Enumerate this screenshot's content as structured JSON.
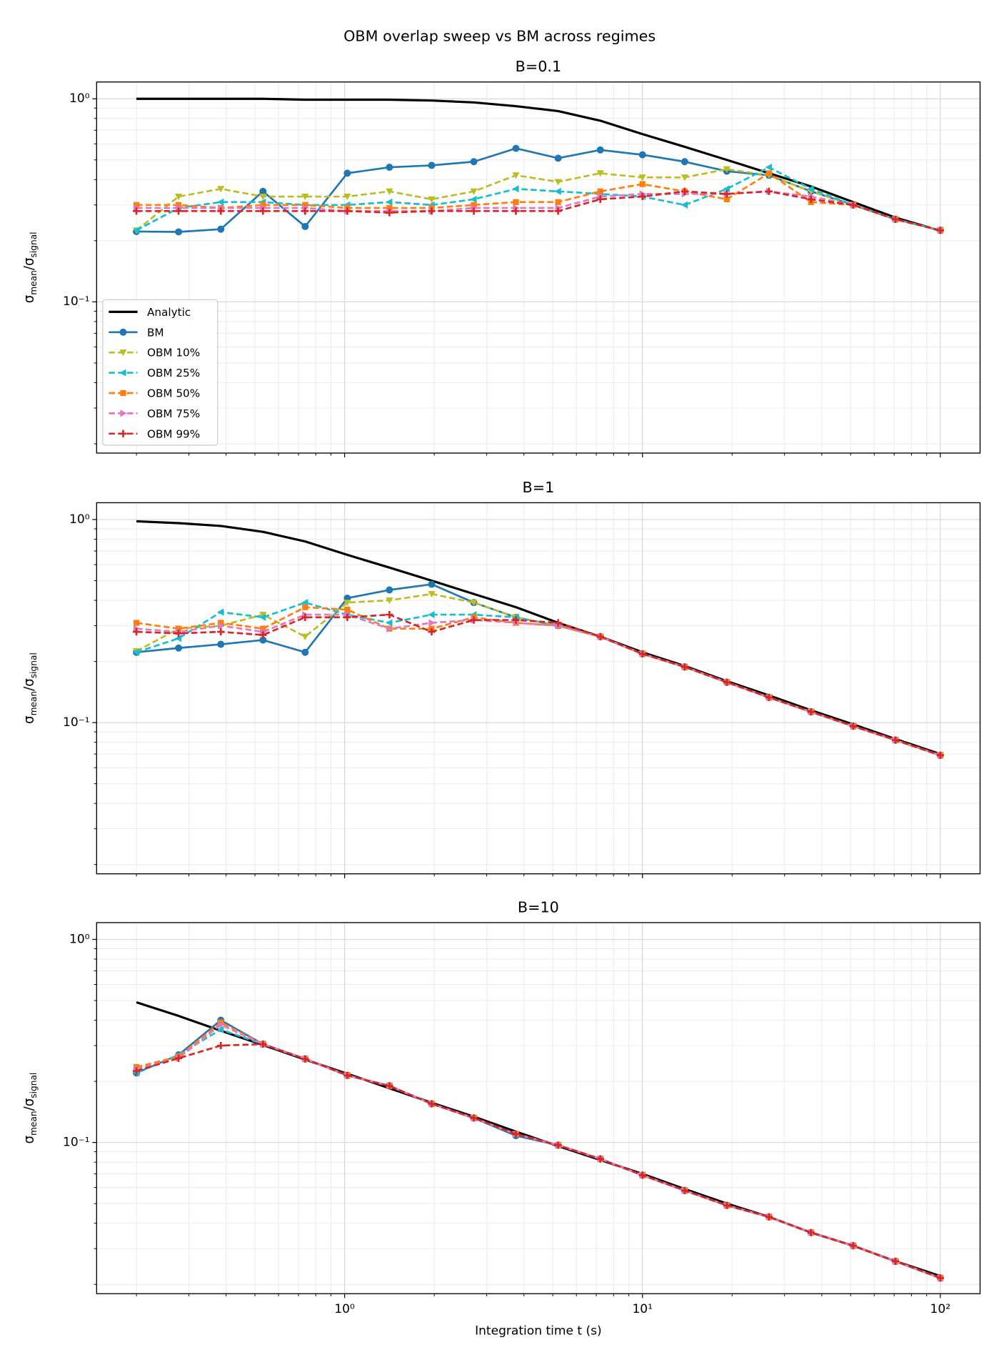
{
  "title": "OBM overlap sweep vs BM across regimes",
  "chart_data": [
    {
      "type": "line",
      "title": "B=0.1",
      "xscale": "log",
      "yscale": "log",
      "grid": true,
      "legend": "lower left",
      "ylabel": [
        "σ",
        "mean",
        "/σ",
        "signal"
      ],
      "xlim": [
        0.147,
        136
      ],
      "ylim": [
        0.018,
        1.21
      ],
      "xticks": [
        1,
        10,
        100
      ],
      "xminor": [
        0.2,
        0.3,
        0.4,
        0.5,
        0.6,
        0.7,
        0.8,
        0.9,
        2,
        3,
        4,
        5,
        6,
        7,
        8,
        9,
        20,
        30,
        40,
        50,
        60,
        70,
        80,
        90
      ],
      "yticks": [
        {
          "value": 0.1,
          "label": "10⁻¹"
        },
        {
          "value": 1,
          "label": "10⁰"
        }
      ],
      "yminor": [
        0.02,
        0.03,
        0.04,
        0.05,
        0.06,
        0.07,
        0.08,
        0.09,
        0.2,
        0.3,
        0.4,
        0.5,
        0.6,
        0.7,
        0.8,
        0.9
      ],
      "x": [
        0.2,
        0.277,
        0.384,
        0.532,
        0.737,
        1.021,
        1.414,
        1.96,
        2.715,
        3.76,
        5.21,
        7.22,
        10,
        13.86,
        19.2,
        26.6,
        36.8,
        51,
        70.7,
        100
      ],
      "series": [
        {
          "name": "Analytic",
          "color": "#000000",
          "dashed": false,
          "marker": "none",
          "values": [
            1.0,
            1.0,
            1.0,
            1.0,
            0.99,
            0.99,
            0.99,
            0.98,
            0.96,
            0.92,
            0.87,
            0.78,
            0.67,
            0.58,
            0.5,
            0.43,
            0.37,
            0.31,
            0.26,
            0.224
          ]
        },
        {
          "name": "BM",
          "color": "#1f77b4",
          "dashed": false,
          "marker": "o",
          "values": [
            0.222,
            0.221,
            0.228,
            0.35,
            0.235,
            0.43,
            0.46,
            0.47,
            0.49,
            0.57,
            0.51,
            0.56,
            0.53,
            0.49,
            0.44,
            0.42,
            0.35,
            0.3,
            0.255,
            0.225
          ]
        },
        {
          "name": "OBM 10%",
          "color": "#bcbd22",
          "dashed": true,
          "marker": "v",
          "values": [
            0.225,
            0.33,
            0.36,
            0.33,
            0.33,
            0.33,
            0.35,
            0.32,
            0.35,
            0.42,
            0.39,
            0.43,
            0.41,
            0.41,
            0.45,
            0.42,
            0.35,
            0.3,
            0.255,
            0.225
          ]
        },
        {
          "name": "OBM 25%",
          "color": "#17becf",
          "dashed": true,
          "marker": "<",
          "values": [
            0.225,
            0.29,
            0.31,
            0.31,
            0.3,
            0.3,
            0.31,
            0.3,
            0.32,
            0.36,
            0.35,
            0.34,
            0.33,
            0.3,
            0.36,
            0.46,
            0.36,
            0.3,
            0.255,
            0.225
          ]
        },
        {
          "name": "OBM 50%",
          "color": "#ff7f0e",
          "dashed": true,
          "marker": "s",
          "values": [
            0.3,
            0.3,
            0.29,
            0.3,
            0.3,
            0.29,
            0.29,
            0.29,
            0.3,
            0.31,
            0.31,
            0.35,
            0.38,
            0.35,
            0.32,
            0.43,
            0.31,
            0.3,
            0.255,
            0.225
          ]
        },
        {
          "name": "OBM 75%",
          "color": "#e377c2",
          "dashed": true,
          "marker": ">",
          "values": [
            0.29,
            0.29,
            0.29,
            0.29,
            0.29,
            0.28,
            0.28,
            0.28,
            0.29,
            0.29,
            0.29,
            0.33,
            0.34,
            0.34,
            0.34,
            0.35,
            0.33,
            0.3,
            0.255,
            0.225
          ]
        },
        {
          "name": "OBM 99%",
          "color": "#d62728",
          "dashed": true,
          "marker": "+",
          "values": [
            0.28,
            0.28,
            0.28,
            0.28,
            0.28,
            0.28,
            0.275,
            0.28,
            0.28,
            0.28,
            0.28,
            0.32,
            0.33,
            0.35,
            0.34,
            0.35,
            0.32,
            0.3,
            0.255,
            0.225
          ]
        }
      ]
    },
    {
      "type": "line",
      "title": "B=1",
      "xscale": "log",
      "yscale": "log",
      "grid": true,
      "ylabel": [
        "σ",
        "mean",
        "/σ",
        "signal"
      ],
      "xlim": [
        0.147,
        136
      ],
      "ylim": [
        0.018,
        1.21
      ],
      "xticks": [
        1,
        10,
        100
      ],
      "xminor": [
        0.2,
        0.3,
        0.4,
        0.5,
        0.6,
        0.7,
        0.8,
        0.9,
        2,
        3,
        4,
        5,
        6,
        7,
        8,
        9,
        20,
        30,
        40,
        50,
        60,
        70,
        80,
        90
      ],
      "yticks": [
        {
          "value": 0.1,
          "label": "10⁻¹"
        },
        {
          "value": 1,
          "label": "10⁰"
        }
      ],
      "yminor": [
        0.02,
        0.03,
        0.04,
        0.05,
        0.06,
        0.07,
        0.08,
        0.09,
        0.2,
        0.3,
        0.4,
        0.5,
        0.6,
        0.7,
        0.8,
        0.9
      ],
      "x": [
        0.2,
        0.277,
        0.384,
        0.532,
        0.737,
        1.021,
        1.414,
        1.96,
        2.715,
        3.76,
        5.21,
        7.22,
        10,
        13.86,
        19.2,
        26.6,
        36.8,
        51,
        70.7,
        100
      ],
      "series": [
        {
          "color": "#000000",
          "dashed": false,
          "marker": "none",
          "values": [
            0.98,
            0.96,
            0.93,
            0.87,
            0.78,
            0.67,
            0.58,
            0.5,
            0.43,
            0.37,
            0.31,
            0.265,
            0.222,
            0.19,
            0.16,
            0.136,
            0.115,
            0.098,
            0.083,
            0.07
          ]
        },
        {
          "color": "#1f77b4",
          "dashed": false,
          "marker": "o",
          "values": [
            0.222,
            0.233,
            0.243,
            0.255,
            0.222,
            0.41,
            0.45,
            0.48,
            0.39,
            0.33,
            0.3,
            0.265,
            0.218,
            0.188,
            0.158,
            0.133,
            0.113,
            0.096,
            0.082,
            0.069
          ]
        },
        {
          "color": "#bcbd22",
          "dashed": true,
          "marker": "v",
          "values": [
            0.225,
            0.29,
            0.3,
            0.34,
            0.265,
            0.39,
            0.4,
            0.43,
            0.39,
            0.33,
            0.3,
            0.265,
            0.218,
            0.188,
            0.158,
            0.133,
            0.113,
            0.096,
            0.082,
            0.069
          ]
        },
        {
          "color": "#17becf",
          "dashed": true,
          "marker": "<",
          "values": [
            0.222,
            0.26,
            0.35,
            0.33,
            0.39,
            0.34,
            0.31,
            0.34,
            0.34,
            0.33,
            0.3,
            0.265,
            0.218,
            0.188,
            0.158,
            0.133,
            0.113,
            0.096,
            0.082,
            0.069
          ]
        },
        {
          "color": "#ff7f0e",
          "dashed": true,
          "marker": "s",
          "values": [
            0.31,
            0.29,
            0.31,
            0.29,
            0.37,
            0.36,
            0.29,
            0.29,
            0.33,
            0.31,
            0.3,
            0.265,
            0.218,
            0.188,
            0.158,
            0.133,
            0.113,
            0.096,
            0.082,
            0.069
          ]
        },
        {
          "color": "#e377c2",
          "dashed": true,
          "marker": ">",
          "values": [
            0.29,
            0.28,
            0.3,
            0.28,
            0.34,
            0.34,
            0.29,
            0.31,
            0.32,
            0.31,
            0.3,
            0.265,
            0.218,
            0.188,
            0.158,
            0.133,
            0.113,
            0.096,
            0.082,
            0.069
          ]
        },
        {
          "color": "#d62728",
          "dashed": true,
          "marker": "+",
          "values": [
            0.28,
            0.275,
            0.28,
            0.27,
            0.33,
            0.33,
            0.34,
            0.28,
            0.32,
            0.32,
            0.31,
            0.265,
            0.218,
            0.188,
            0.158,
            0.133,
            0.113,
            0.096,
            0.082,
            0.069
          ]
        }
      ]
    },
    {
      "type": "line",
      "title": "B=10",
      "xscale": "log",
      "yscale": "log",
      "grid": true,
      "ylabel": [
        "σ",
        "mean",
        "/σ",
        "signal"
      ],
      "xlabel": "Integration time t (s)",
      "xlim": [
        0.147,
        136
      ],
      "ylim": [
        0.018,
        1.21
      ],
      "xticks": [
        {
          "value": 1,
          "label": "10⁰"
        },
        {
          "value": 10,
          "label": "10¹"
        },
        {
          "value": 100,
          "label": "10²"
        }
      ],
      "xminor": [
        0.2,
        0.3,
        0.4,
        0.5,
        0.6,
        0.7,
        0.8,
        0.9,
        2,
        3,
        4,
        5,
        6,
        7,
        8,
        9,
        20,
        30,
        40,
        50,
        60,
        70,
        80,
        90
      ],
      "yticks": [
        {
          "value": 0.1,
          "label": "10⁻¹"
        },
        {
          "value": 1,
          "label": "10⁰"
        }
      ],
      "yminor": [
        0.02,
        0.03,
        0.04,
        0.05,
        0.06,
        0.07,
        0.08,
        0.09,
        0.2,
        0.3,
        0.4,
        0.5,
        0.6,
        0.7,
        0.8,
        0.9
      ],
      "x": [
        0.2,
        0.277,
        0.384,
        0.532,
        0.737,
        1.021,
        1.414,
        1.96,
        2.715,
        3.76,
        5.21,
        7.22,
        10,
        13.86,
        19.2,
        26.6,
        36.8,
        51,
        70.7,
        100
      ],
      "series": [
        {
          "color": "#000000",
          "dashed": false,
          "marker": "none",
          "values": [
            0.49,
            0.42,
            0.355,
            0.302,
            0.256,
            0.218,
            0.185,
            0.157,
            0.134,
            0.113,
            0.096,
            0.082,
            0.07,
            0.059,
            0.05,
            0.043,
            0.036,
            0.031,
            0.026,
            0.022
          ]
        },
        {
          "color": "#1f77b4",
          "dashed": false,
          "marker": "o",
          "values": [
            0.22,
            0.27,
            0.4,
            0.305,
            0.258,
            0.214,
            0.19,
            0.155,
            0.132,
            0.108,
            0.097,
            0.083,
            0.069,
            0.058,
            0.049,
            0.043,
            0.036,
            0.031,
            0.026,
            0.0215
          ]
        },
        {
          "color": "#bcbd22",
          "dashed": true,
          "marker": "v",
          "values": [
            0.225,
            0.265,
            0.38,
            0.305,
            0.258,
            0.214,
            0.19,
            0.155,
            0.132,
            0.11,
            0.097,
            0.083,
            0.069,
            0.058,
            0.049,
            0.043,
            0.036,
            0.031,
            0.026,
            0.0215
          ]
        },
        {
          "color": "#17becf",
          "dashed": true,
          "marker": "<",
          "values": [
            0.22,
            0.27,
            0.36,
            0.305,
            0.258,
            0.214,
            0.19,
            0.155,
            0.132,
            0.11,
            0.097,
            0.083,
            0.069,
            0.058,
            0.049,
            0.043,
            0.036,
            0.031,
            0.026,
            0.0215
          ]
        },
        {
          "color": "#ff7f0e",
          "dashed": true,
          "marker": "s",
          "values": [
            0.235,
            0.265,
            0.39,
            0.305,
            0.258,
            0.214,
            0.19,
            0.155,
            0.132,
            0.11,
            0.097,
            0.083,
            0.069,
            0.058,
            0.049,
            0.043,
            0.036,
            0.031,
            0.026,
            0.0215
          ]
        },
        {
          "color": "#e377c2",
          "dashed": true,
          "marker": ">",
          "values": [
            0.23,
            0.26,
            0.38,
            0.305,
            0.258,
            0.214,
            0.19,
            0.155,
            0.132,
            0.11,
            0.097,
            0.083,
            0.069,
            0.058,
            0.049,
            0.043,
            0.036,
            0.031,
            0.026,
            0.0215
          ]
        },
        {
          "color": "#d62728",
          "dashed": true,
          "marker": "+",
          "values": [
            0.225,
            0.26,
            0.3,
            0.305,
            0.258,
            0.214,
            0.19,
            0.155,
            0.132,
            0.11,
            0.097,
            0.083,
            0.069,
            0.058,
            0.049,
            0.043,
            0.036,
            0.031,
            0.026,
            0.0215
          ]
        }
      ]
    }
  ]
}
